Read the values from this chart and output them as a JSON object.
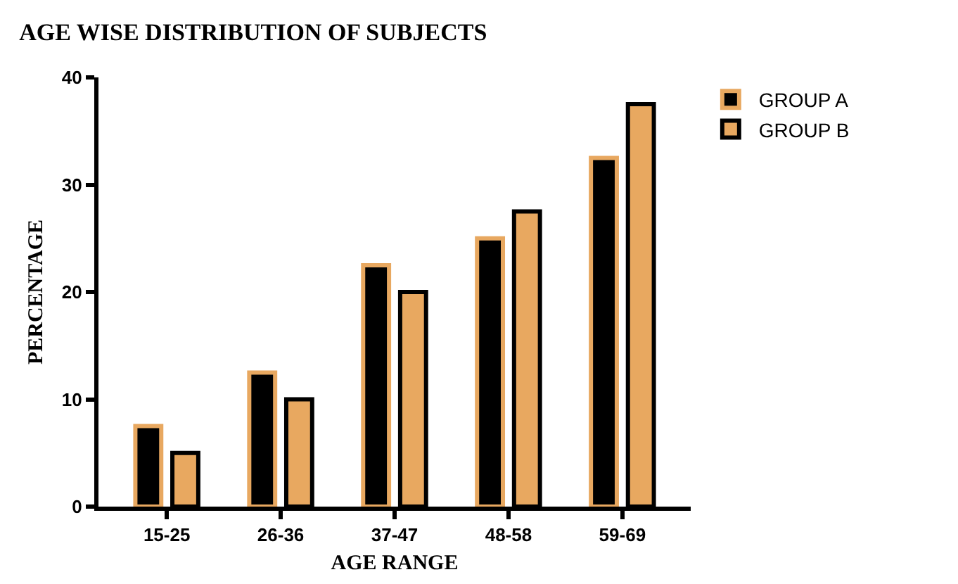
{
  "chart_data": {
    "type": "bar",
    "title": "AGE WISE DISTRIBUTION OF SUBJECTS",
    "xlabel": "AGE RANGE",
    "ylabel": "PERCENTAGE",
    "categories": [
      "15-25",
      "26-36",
      "37-47",
      "48-58",
      "59-69"
    ],
    "series": [
      {
        "name": "GROUP A",
        "color": "#000000",
        "values": [
          7.5,
          12.5,
          22.5,
          25,
          32.5
        ]
      },
      {
        "name": "GROUP B",
        "color": "#e8a860",
        "values": [
          5,
          10,
          20,
          27.5,
          37.5
        ]
      }
    ],
    "ylim": [
      0,
      40
    ],
    "yticks": [
      0,
      10,
      20,
      30,
      40
    ],
    "grid": false,
    "legend": "top right"
  }
}
